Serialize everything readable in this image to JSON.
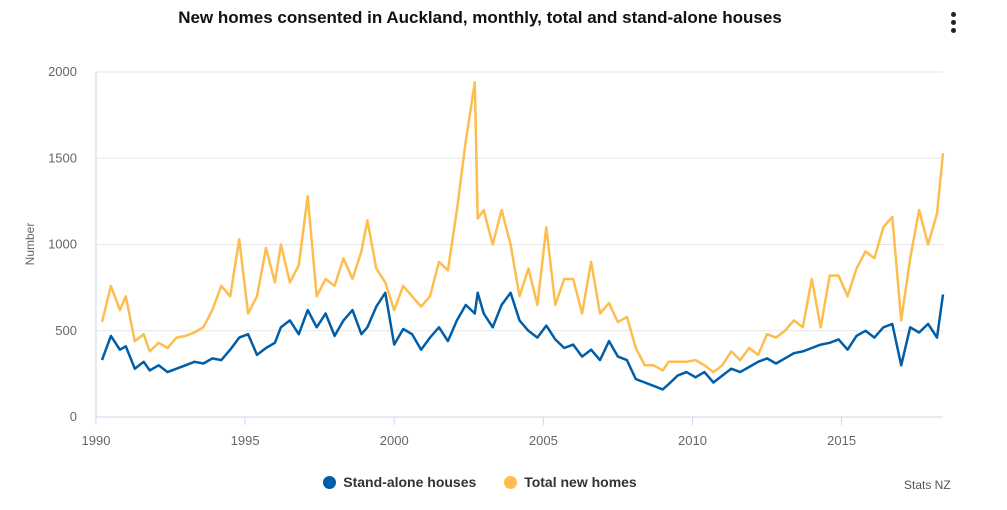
{
  "chart_data": {
    "type": "line",
    "title": "New homes consented in Auckland, monthly, total and stand-alone houses",
    "xlabel": "",
    "ylabel": "Number",
    "xlim": [
      1990,
      2018.4
    ],
    "ylim": [
      0,
      2000
    ],
    "xticks": [
      1990,
      1995,
      2000,
      2005,
      2010,
      2015
    ],
    "yticks": [
      0,
      500,
      1000,
      1500,
      2000
    ],
    "series": [
      {
        "name": "Stand-alone houses",
        "color": "#005ea8",
        "x": [
          1990.2,
          1990.5,
          1990.8,
          1991.0,
          1991.3,
          1991.6,
          1991.8,
          1992.1,
          1992.4,
          1992.7,
          1993.0,
          1993.3,
          1993.6,
          1993.9,
          1994.2,
          1994.5,
          1994.8,
          1995.1,
          1995.4,
          1995.7,
          1996.0,
          1996.2,
          1996.5,
          1996.8,
          1997.1,
          1997.4,
          1997.7,
          1998.0,
          1998.3,
          1998.6,
          1998.9,
          1999.1,
          1999.4,
          1999.7,
          2000.0,
          2000.3,
          2000.6,
          2000.9,
          2001.2,
          2001.5,
          2001.8,
          2002.1,
          2002.4,
          2002.7,
          2002.8,
          2003.0,
          2003.3,
          2003.6,
          2003.9,
          2004.2,
          2004.5,
          2004.8,
          2005.1,
          2005.4,
          2005.7,
          2006.0,
          2006.3,
          2006.6,
          2006.9,
          2007.2,
          2007.5,
          2007.8,
          2008.1,
          2008.4,
          2008.7,
          2009.0,
          2009.2,
          2009.5,
          2009.8,
          2010.1,
          2010.4,
          2010.7,
          2011.0,
          2011.3,
          2011.6,
          2011.9,
          2012.2,
          2012.5,
          2012.8,
          2013.1,
          2013.4,
          2013.7,
          2014.0,
          2014.3,
          2014.6,
          2014.9,
          2015.2,
          2015.5,
          2015.8,
          2016.1,
          2016.4,
          2016.7,
          2017.0,
          2017.3,
          2017.6,
          2017.9,
          2018.2,
          2018.4
        ],
        "values": [
          330,
          470,
          390,
          410,
          280,
          320,
          270,
          300,
          260,
          280,
          300,
          320,
          310,
          340,
          330,
          390,
          460,
          480,
          360,
          400,
          430,
          520,
          560,
          480,
          620,
          520,
          600,
          470,
          560,
          620,
          480,
          520,
          640,
          720,
          420,
          510,
          480,
          390,
          460,
          520,
          440,
          560,
          650,
          600,
          720,
          600,
          520,
          650,
          720,
          560,
          500,
          460,
          530,
          450,
          400,
          420,
          350,
          390,
          330,
          440,
          350,
          330,
          220,
          200,
          180,
          160,
          190,
          240,
          260,
          230,
          260,
          200,
          240,
          280,
          260,
          290,
          320,
          340,
          310,
          340,
          370,
          380,
          400,
          420,
          430,
          450,
          390,
          470,
          500,
          460,
          520,
          540,
          300,
          520,
          490,
          540,
          460,
          710
        ]
      },
      {
        "name": "Total new homes",
        "color": "#fdbe4f",
        "x": [
          1990.2,
          1990.5,
          1990.8,
          1991.0,
          1991.3,
          1991.6,
          1991.8,
          1992.1,
          1992.4,
          1992.7,
          1993.0,
          1993.3,
          1993.6,
          1993.9,
          1994.2,
          1994.5,
          1994.8,
          1995.1,
          1995.4,
          1995.7,
          1996.0,
          1996.2,
          1996.5,
          1996.8,
          1997.1,
          1997.4,
          1997.7,
          1998.0,
          1998.3,
          1998.6,
          1998.9,
          1999.1,
          1999.4,
          1999.7,
          2000.0,
          2000.3,
          2000.6,
          2000.9,
          2001.2,
          2001.5,
          2001.8,
          2002.1,
          2002.4,
          2002.7,
          2002.8,
          2003.0,
          2003.3,
          2003.6,
          2003.9,
          2004.2,
          2004.5,
          2004.8,
          2005.1,
          2005.4,
          2005.7,
          2006.0,
          2006.3,
          2006.6,
          2006.9,
          2007.2,
          2007.5,
          2007.8,
          2008.1,
          2008.4,
          2008.7,
          2009.0,
          2009.2,
          2009.5,
          2009.8,
          2010.1,
          2010.4,
          2010.7,
          2011.0,
          2011.3,
          2011.6,
          2011.9,
          2012.2,
          2012.5,
          2012.8,
          2013.1,
          2013.4,
          2013.7,
          2014.0,
          2014.3,
          2014.6,
          2014.9,
          2015.2,
          2015.5,
          2015.8,
          2016.1,
          2016.4,
          2016.7,
          2017.0,
          2017.3,
          2017.6,
          2017.9,
          2018.2,
          2018.4
        ],
        "values": [
          550,
          760,
          620,
          700,
          440,
          480,
          380,
          430,
          400,
          460,
          470,
          490,
          520,
          620,
          760,
          700,
          1030,
          600,
          700,
          980,
          780,
          1000,
          780,
          880,
          1280,
          700,
          800,
          760,
          920,
          800,
          960,
          1140,
          860,
          780,
          620,
          760,
          700,
          640,
          700,
          900,
          850,
          1200,
          1600,
          1940,
          1150,
          1200,
          1000,
          1200,
          1000,
          700,
          860,
          650,
          1100,
          650,
          800,
          800,
          600,
          900,
          600,
          660,
          550,
          580,
          400,
          300,
          300,
          270,
          320,
          320,
          320,
          330,
          300,
          260,
          300,
          380,
          330,
          400,
          360,
          480,
          460,
          500,
          560,
          520,
          800,
          520,
          820,
          820,
          700,
          860,
          960,
          920,
          1100,
          1160,
          560,
          920,
          1200,
          1000,
          1180,
          1530
        ]
      }
    ]
  },
  "legend": {
    "items": [
      {
        "label": "Stand-alone houses",
        "color": "#005ea8"
      },
      {
        "label": "Total new homes",
        "color": "#fdbe4f"
      }
    ]
  },
  "credits": "Stats NZ",
  "menu_icon": "kebab-menu-icon"
}
